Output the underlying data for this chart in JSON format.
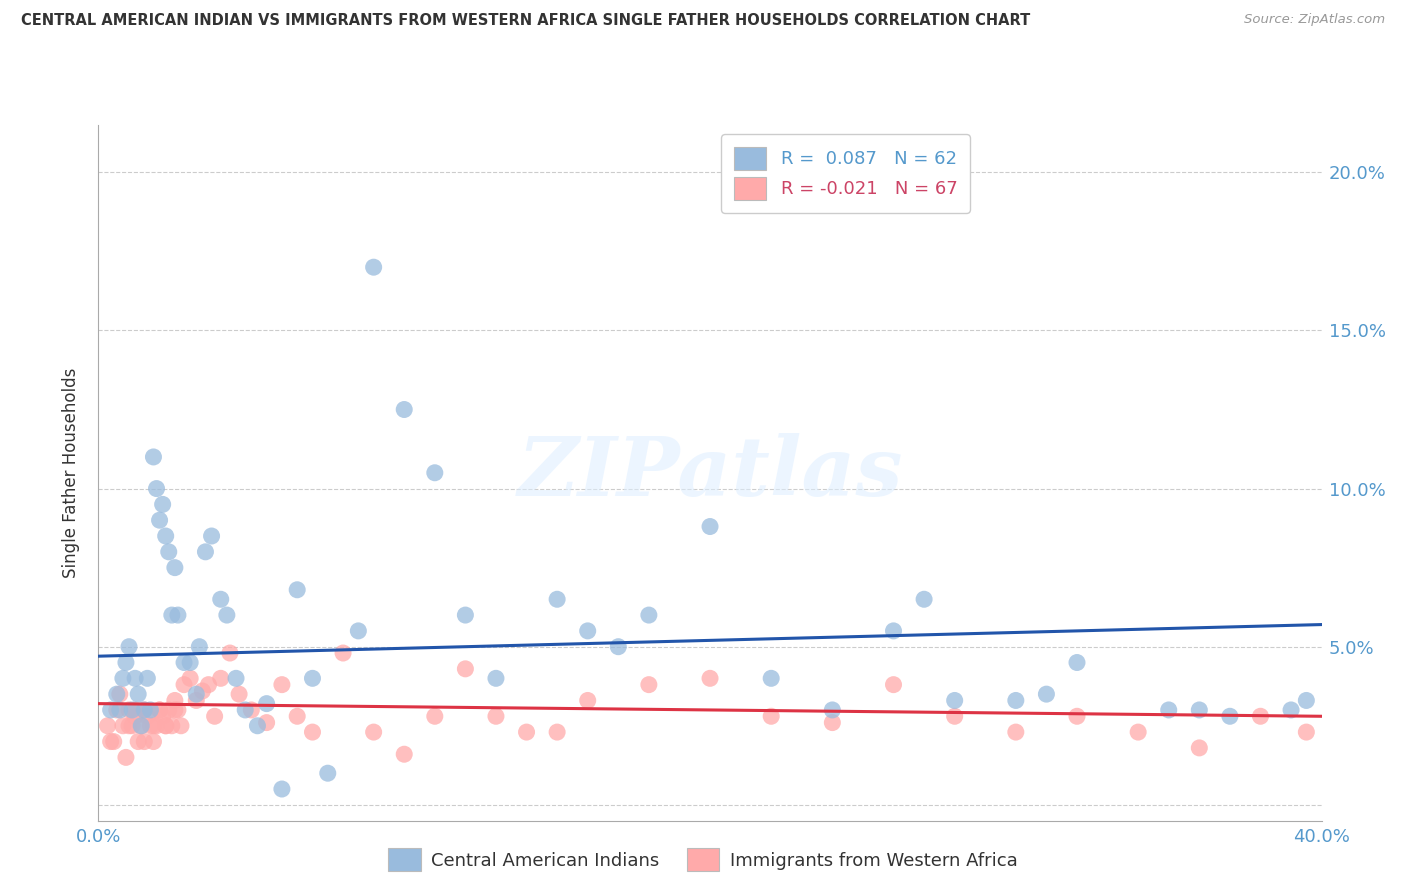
{
  "title": "CENTRAL AMERICAN INDIAN VS IMMIGRANTS FROM WESTERN AFRICA SINGLE FATHER HOUSEHOLDS CORRELATION CHART",
  "source": "Source: ZipAtlas.com",
  "ylabel": "Single Father Households",
  "xlim": [
    0.0,
    0.4
  ],
  "ylim": [
    -0.005,
    0.215
  ],
  "yticks": [
    0.0,
    0.05,
    0.1,
    0.15,
    0.2
  ],
  "yticklabels_right": [
    "",
    "5.0%",
    "10.0%",
    "15.0%",
    "20.0%"
  ],
  "xtick_positions": [
    0.0,
    0.08,
    0.16,
    0.24,
    0.32,
    0.4
  ],
  "xticklabels": [
    "0.0%",
    "",
    "",
    "",
    "",
    "40.0%"
  ],
  "legend1_R": "0.087",
  "legend1_N": "62",
  "legend2_R": "-0.021",
  "legend2_N": "67",
  "blue_color": "#99BBDD",
  "pink_color": "#FFAAAA",
  "trendline_blue": "#2255AA",
  "trendline_pink": "#DD3344",
  "watermark": "ZIPatlas",
  "blue_x": [
    0.004,
    0.006,
    0.007,
    0.008,
    0.009,
    0.01,
    0.011,
    0.012,
    0.013,
    0.014,
    0.015,
    0.016,
    0.017,
    0.018,
    0.019,
    0.02,
    0.021,
    0.022,
    0.023,
    0.024,
    0.025,
    0.026,
    0.028,
    0.03,
    0.032,
    0.033,
    0.035,
    0.037,
    0.04,
    0.042,
    0.045,
    0.048,
    0.052,
    0.055,
    0.06,
    0.065,
    0.07,
    0.075,
    0.085,
    0.09,
    0.1,
    0.11,
    0.12,
    0.13,
    0.15,
    0.16,
    0.17,
    0.18,
    0.2,
    0.22,
    0.24,
    0.26,
    0.28,
    0.3,
    0.32,
    0.35,
    0.36,
    0.37,
    0.39,
    0.395,
    0.27,
    0.31
  ],
  "blue_y": [
    0.03,
    0.035,
    0.03,
    0.04,
    0.045,
    0.05,
    0.03,
    0.04,
    0.035,
    0.025,
    0.03,
    0.04,
    0.03,
    0.11,
    0.1,
    0.09,
    0.095,
    0.085,
    0.08,
    0.06,
    0.075,
    0.06,
    0.045,
    0.045,
    0.035,
    0.05,
    0.08,
    0.085,
    0.065,
    0.06,
    0.04,
    0.03,
    0.025,
    0.032,
    0.005,
    0.068,
    0.04,
    0.01,
    0.055,
    0.17,
    0.125,
    0.105,
    0.06,
    0.04,
    0.065,
    0.055,
    0.05,
    0.06,
    0.088,
    0.04,
    0.03,
    0.055,
    0.033,
    0.033,
    0.045,
    0.03,
    0.03,
    0.028,
    0.03,
    0.033,
    0.065,
    0.035
  ],
  "pink_x": [
    0.003,
    0.004,
    0.005,
    0.006,
    0.007,
    0.008,
    0.009,
    0.01,
    0.011,
    0.012,
    0.013,
    0.014,
    0.015,
    0.016,
    0.017,
    0.018,
    0.019,
    0.02,
    0.021,
    0.022,
    0.023,
    0.024,
    0.025,
    0.026,
    0.027,
    0.028,
    0.03,
    0.032,
    0.034,
    0.036,
    0.038,
    0.04,
    0.043,
    0.046,
    0.05,
    0.055,
    0.06,
    0.065,
    0.07,
    0.08,
    0.09,
    0.1,
    0.11,
    0.12,
    0.13,
    0.14,
    0.15,
    0.16,
    0.18,
    0.2,
    0.22,
    0.24,
    0.26,
    0.28,
    0.3,
    0.32,
    0.34,
    0.36,
    0.38,
    0.395,
    0.01,
    0.012,
    0.015,
    0.018,
    0.02,
    0.022,
    0.025
  ],
  "pink_y": [
    0.025,
    0.02,
    0.02,
    0.03,
    0.035,
    0.025,
    0.015,
    0.025,
    0.025,
    0.028,
    0.02,
    0.025,
    0.02,
    0.028,
    0.025,
    0.02,
    0.025,
    0.03,
    0.028,
    0.025,
    0.03,
    0.025,
    0.033,
    0.03,
    0.025,
    0.038,
    0.04,
    0.033,
    0.036,
    0.038,
    0.028,
    0.04,
    0.048,
    0.035,
    0.03,
    0.026,
    0.038,
    0.028,
    0.023,
    0.048,
    0.023,
    0.016,
    0.028,
    0.043,
    0.028,
    0.023,
    0.023,
    0.033,
    0.038,
    0.04,
    0.028,
    0.026,
    0.038,
    0.028,
    0.023,
    0.028,
    0.023,
    0.018,
    0.028,
    0.023,
    0.03,
    0.03,
    0.03,
    0.025,
    0.03,
    0.025,
    0.03
  ],
  "blue_trendline_start": 0.047,
  "blue_trendline_end": 0.057,
  "pink_trendline_start": 0.032,
  "pink_trendline_end": 0.028
}
